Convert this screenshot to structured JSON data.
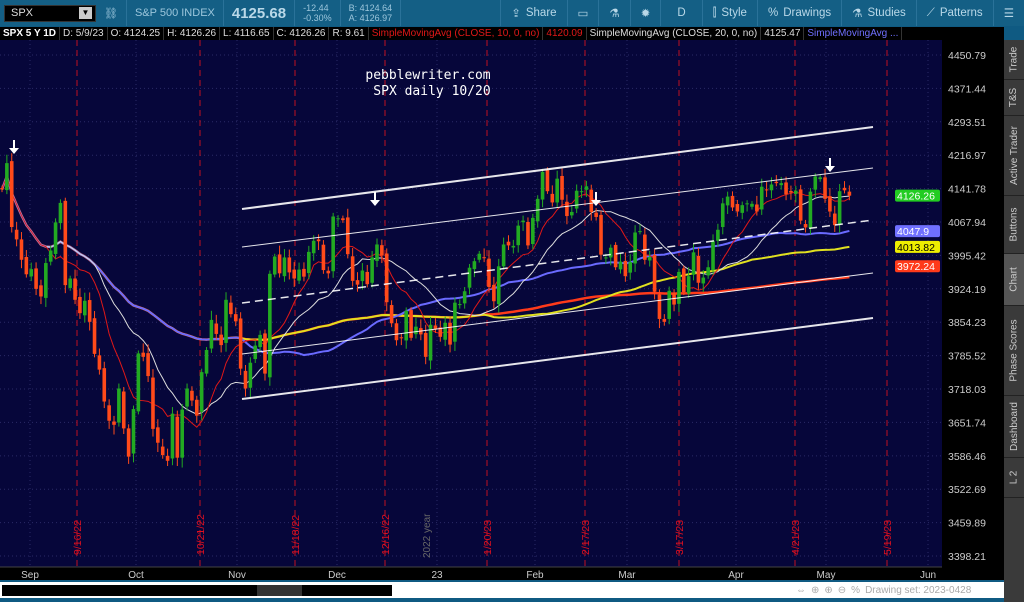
{
  "toolbar": {
    "symbol": "SPX",
    "name": "S&P 500 INDEX",
    "last": "4125.68",
    "change": "-12.44",
    "change_pct": "-0.30%",
    "bid": "B: 4124.64",
    "ask": "A: 4126.97",
    "buttons": [
      {
        "label": "Share",
        "icon": "share-icon"
      },
      {
        "label": "",
        "icon": "alert-icon"
      },
      {
        "label": "",
        "icon": "flask-icon"
      },
      {
        "label": "",
        "icon": "gear-icon"
      },
      {
        "label": "D",
        "icon": ""
      },
      {
        "label": "Style",
        "icon": "candle-icon"
      },
      {
        "label": "Drawings",
        "icon": "percent-icon"
      },
      {
        "label": "Studies",
        "icon": "flask-icon"
      },
      {
        "label": "Patterns",
        "icon": "pattern-icon"
      },
      {
        "label": "",
        "icon": "menu-icon"
      }
    ]
  },
  "legend": {
    "title": "SPX 5 Y 1D",
    "date": "D: 5/9/23",
    "open": "O: 4124.25",
    "high": "H: 4126.26",
    "low": "L: 4116.65",
    "close": "C: 4126.26",
    "range": "R: 9.61",
    "studies": [
      {
        "label": "SimpleMovingAvg (CLOSE, 10, 0, no)",
        "value": "4120.09",
        "color": "#e01818"
      },
      {
        "label": "SimpleMovingAvg (CLOSE, 20, 0, no)",
        "value": "4125.47",
        "color": "#dddddd"
      },
      {
        "label": "SimpleMovingAvg ...",
        "value": "",
        "color": "#7070ff"
      }
    ]
  },
  "annotation": {
    "line1": "pebblewriter.com",
    "line2": "SPX daily 10/20"
  },
  "sidebar": [
    "Trade",
    "T&S",
    "Active Trader",
    "Buttons",
    "Chart",
    "Phase Scores",
    "Dashboard",
    "L 2"
  ],
  "scrollbar": {
    "drawing_set": "Drawing set: 2023-0428"
  },
  "chart_data": {
    "type": "candlestick",
    "scale": "log",
    "ylim": [
      3398.21,
      4450.79
    ],
    "y_ticks": [
      "4450.79",
      "4371.44",
      "4293.51",
      "4216.97",
      "4141.78",
      "4067.94",
      "3995.42",
      "3924.19",
      "3854.23",
      "3785.52",
      "3718.03",
      "3651.74",
      "3586.46",
      "3522.69",
      "3459.89",
      "3398.21"
    ],
    "x_ticks": [
      "Sep",
      "Oct",
      "Nov",
      "Dec",
      "23",
      "Feb",
      "Mar",
      "Apr",
      "May",
      "Jun"
    ],
    "closes": [
      4140,
      4199,
      4057,
      4030,
      3986,
      3955,
      3966,
      3924,
      3908,
      3979,
      4006,
      4067,
      4110,
      3932,
      3946,
      3901,
      3873,
      3899,
      3855,
      3789,
      3757,
      3693,
      3655,
      3647,
      3719,
      3640,
      3585,
      3678,
      3790,
      3783,
      3744,
      3639,
      3612,
      3588,
      3577,
      3669,
      3583,
      3677,
      3719,
      3695,
      3665,
      3752,
      3797,
      3859,
      3830,
      3807,
      3901,
      3871,
      3856,
      3759,
      3719,
      3771,
      3806,
      3828,
      3749,
      3956,
      3993,
      3957,
      3991,
      3959,
      3946,
      3965,
      3950,
      4003,
      4027,
      4026,
      3964,
      3957,
      4080,
      4076,
      4072,
      3998,
      3941,
      3933,
      3963,
      3934,
      3991,
      4019,
      3995,
      3896,
      3852,
      3817,
      3821,
      3878,
      3822,
      3845,
      3829,
      3783,
      3849,
      3839,
      3824,
      3853,
      3808,
      3895,
      3892,
      3919,
      3969,
      3983,
      3999,
      3990,
      3928,
      3898,
      3972,
      4019,
      4017,
      4016,
      4060,
      4071,
      4017,
      4077,
      4119,
      4179,
      4136,
      4111,
      4164,
      4117,
      4081,
      4090,
      4137,
      4136,
      4147,
      4090,
      4079,
      3997,
      3991,
      4012,
      3970,
      3982,
      3951,
      3981,
      4045,
      4048,
      3986,
      3992,
      3918,
      3861,
      3855,
      3920,
      3891,
      3960,
      3917,
      3951,
      4002,
      3937,
      3948,
      3970,
      4027,
      4051,
      4109,
      4124,
      4100,
      4091,
      4105,
      4109,
      4108,
      4091,
      4146,
      4138,
      4151,
      4154,
      4154,
      4129,
      4133,
      4137,
      4071,
      4056,
      4135,
      4169,
      4167,
      4119,
      4091,
      4061,
      4136,
      4138,
      4126
    ],
    "moving_averages": [
      {
        "period": 10,
        "color": "#e01818"
      },
      {
        "period": 20,
        "color": "#dddddd"
      },
      {
        "period": 50,
        "color": "#6a6aff"
      },
      {
        "period": 100,
        "color": "#e0e020"
      },
      {
        "period": 200,
        "color": "#ff3a1a"
      }
    ],
    "price_labels": [
      {
        "value": "4126.26",
        "color": "#22cc22"
      },
      {
        "value": "4047.9",
        "color": "#7070ff"
      },
      {
        "value": "4013.82",
        "color": "#eeee00"
      },
      {
        "value": "3972.24",
        "color": "#ff3a1a"
      }
    ],
    "event_lines": [
      "9/16/22",
      "10/21/22",
      "11/18/22",
      "12/16/22",
      "1/20/23",
      "2/17/23",
      "3/17/23",
      "4/21/23",
      "5/19/23"
    ],
    "year_marker": "2022 year",
    "up_color": "#22aa22",
    "down_color": "#ff4a1a",
    "background": "#06063a"
  }
}
